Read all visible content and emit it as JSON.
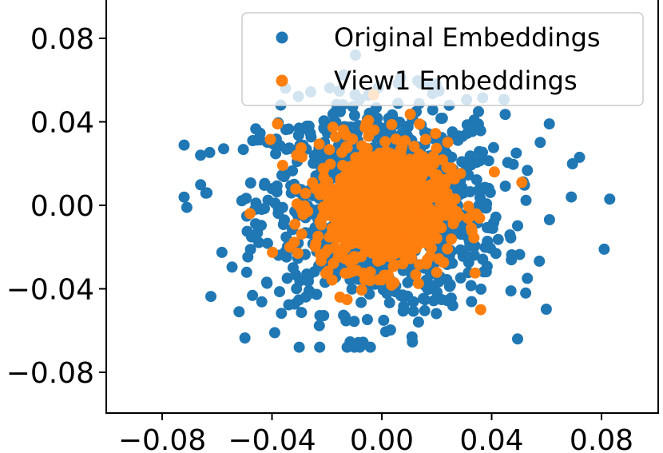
{
  "chart_data": {
    "type": "scatter",
    "title": "",
    "xlabel": "",
    "ylabel": "",
    "xlim": [
      -0.1,
      0.1
    ],
    "ylim": [
      -0.1,
      0.1
    ],
    "x_ticks": [
      "−0.08",
      "−0.04",
      "0.00",
      "0.04",
      "0.08"
    ],
    "x_tick_values": [
      -0.08,
      -0.04,
      0.0,
      0.04,
      0.08
    ],
    "y_ticks": [
      "0.08",
      "0.04",
      "0.00",
      "−0.04",
      "−0.08"
    ],
    "y_tick_values": [
      0.08,
      0.04,
      0.0,
      -0.04,
      -0.08
    ],
    "grid": false,
    "legend_position": "top-right",
    "series": [
      {
        "name": "Original Embeddings",
        "color": "#1f77b4",
        "x_std": 0.022,
        "y_std": 0.025,
        "notable_points": [
          {
            "x": -0.071,
            "y": -0.001
          },
          {
            "x": 0.083,
            "y": 0.003
          },
          {
            "x": 0.081,
            "y": -0.021
          },
          {
            "x": -0.008,
            "y": -0.068
          },
          {
            "x": 0.072,
            "y": 0.023
          },
          {
            "x": -0.066,
            "y": 0.024
          },
          {
            "x": 0.061,
            "y": 0.039
          },
          {
            "x": -0.052,
            "y": -0.051
          },
          {
            "x": 0.069,
            "y": 0.004
          },
          {
            "x": -0.047,
            "y": 0.031
          },
          {
            "x": 0.047,
            "y": -0.041
          },
          {
            "x": 0.011,
            "y": -0.063
          },
          {
            "x": -0.039,
            "y": -0.061
          },
          {
            "x": 0.053,
            "y": -0.035
          }
        ]
      },
      {
        "name": "View1 Embeddings",
        "color": "#ff7f0e",
        "x_std": 0.012,
        "y_std": 0.015,
        "notable_points": [
          {
            "x": 0.036,
            "y": -0.05
          },
          {
            "x": -0.048,
            "y": -0.004
          },
          {
            "x": -0.038,
            "y": 0.039
          },
          {
            "x": -0.003,
            "y": 0.053
          },
          {
            "x": 0.041,
            "y": 0.016
          },
          {
            "x": 0.051,
            "y": 0.011
          }
        ]
      }
    ]
  }
}
